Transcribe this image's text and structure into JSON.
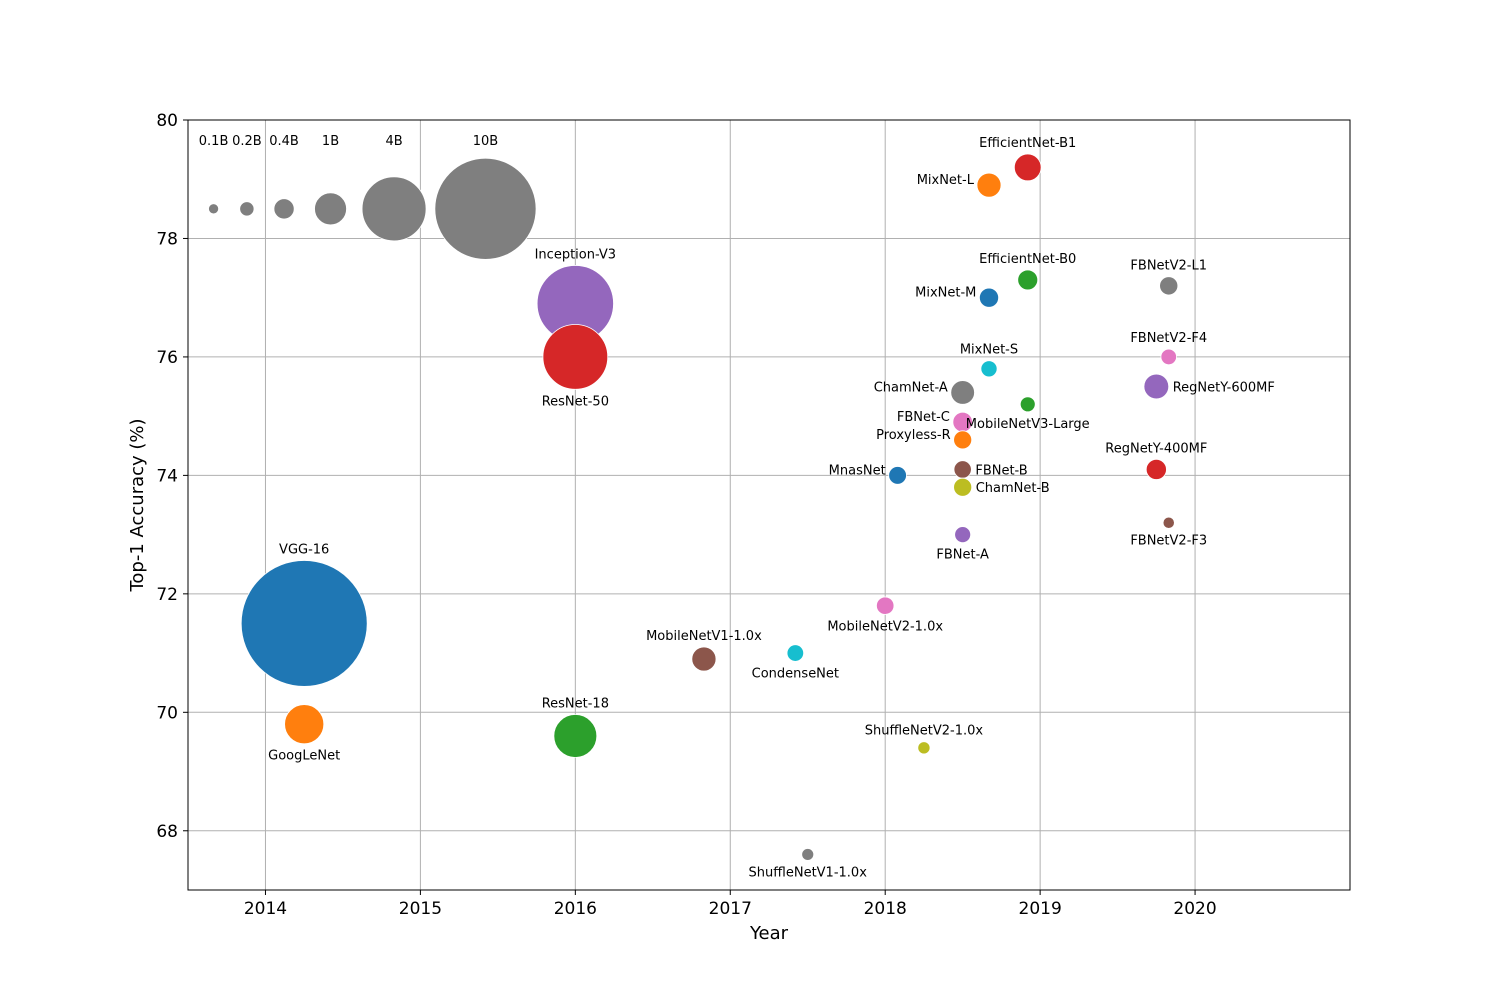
{
  "chart_data": {
    "type": "scatter",
    "title": "",
    "xlabel": "Year",
    "ylabel": "Top-1 Accuracy (%)",
    "xlim": [
      2013.5,
      2021
    ],
    "ylim": [
      67,
      80
    ],
    "xticks": [
      2014,
      2015,
      2016,
      2017,
      2018,
      2019,
      2020
    ],
    "yticks": [
      68,
      70,
      72,
      74,
      76,
      78,
      80
    ],
    "grid": true,
    "size_encoding": "FLOPs (GFLOPs), bubble area",
    "size_legend": {
      "placement": "top-left",
      "color": "#7f7f7f",
      "y": 78.5,
      "items": [
        {
          "label": "0.1B",
          "x": 2013.665,
          "gflops": 0.1
        },
        {
          "label": "0.2B",
          "x": 2013.88,
          "gflops": 0.2
        },
        {
          "label": "0.4B",
          "x": 2014.12,
          "gflops": 0.4
        },
        {
          "label": "1B",
          "x": 2014.42,
          "gflops": 1
        },
        {
          "label": "4B",
          "x": 2014.83,
          "gflops": 4
        },
        {
          "label": "10B",
          "x": 2015.42,
          "gflops": 10
        }
      ]
    },
    "points": [
      {
        "name": "VGG-16",
        "x": 2014.25,
        "y": 71.5,
        "gflops": 15.5,
        "color": "#1f77b4",
        "label_pos": "top"
      },
      {
        "name": "GoogLeNet",
        "x": 2014.25,
        "y": 69.8,
        "gflops": 1.5,
        "color": "#ff7f0e",
        "label_pos": "bottom"
      },
      {
        "name": "Inception-V3",
        "x": 2016.0,
        "y": 76.9,
        "gflops": 5.7,
        "color": "#9467bd",
        "label_pos": "top"
      },
      {
        "name": "ResNet-50",
        "x": 2016.0,
        "y": 76.0,
        "gflops": 4.1,
        "color": "#d62728",
        "label_pos": "bottom"
      },
      {
        "name": "ResNet-18",
        "x": 2016.0,
        "y": 69.6,
        "gflops": 1.8,
        "color": "#2ca02c",
        "label_pos": "top"
      },
      {
        "name": "MobileNetV1-1.0x",
        "x": 2016.83,
        "y": 70.9,
        "gflops": 0.57,
        "color": "#8c564b",
        "label_pos": "top"
      },
      {
        "name": "CondenseNet",
        "x": 2017.42,
        "y": 71.0,
        "gflops": 0.27,
        "color": "#17becf",
        "label_pos": "bottom"
      },
      {
        "name": "ShuffleNetV1-1.0x",
        "x": 2017.5,
        "y": 67.6,
        "gflops": 0.14,
        "color": "#7f7f7f",
        "label_pos": "bottom"
      },
      {
        "name": "MobileNetV2-1.0x",
        "x": 2018.0,
        "y": 71.8,
        "gflops": 0.3,
        "color": "#e377c2",
        "label_pos": "bottom"
      },
      {
        "name": "ShuffleNetV2-1.0x",
        "x": 2018.25,
        "y": 69.4,
        "gflops": 0.146,
        "color": "#bcbd22",
        "label_pos": "top"
      },
      {
        "name": "MnasNet",
        "x": 2018.08,
        "y": 74.0,
        "gflops": 0.31,
        "color": "#1f77b4",
        "label_pos": "left"
      },
      {
        "name": "ChamNet-A",
        "x": 2018.5,
        "y": 75.4,
        "gflops": 0.55,
        "color": "#7f7f7f",
        "label_pos": "left"
      },
      {
        "name": "FBNet-C",
        "x": 2018.5,
        "y": 74.9,
        "gflops": 0.375,
        "color": "#e377c2",
        "label_pos": "left"
      },
      {
        "name": "Proxyless-R",
        "x": 2018.5,
        "y": 74.6,
        "gflops": 0.32,
        "color": "#ff7f0e",
        "label_pos": "left"
      },
      {
        "name": "FBNet-B",
        "x": 2018.5,
        "y": 74.1,
        "gflops": 0.295,
        "color": "#8c564b",
        "label_pos": "right"
      },
      {
        "name": "ChamNet-B",
        "x": 2018.5,
        "y": 73.8,
        "gflops": 0.32,
        "color": "#bcbd22",
        "label_pos": "right"
      },
      {
        "name": "FBNet-A",
        "x": 2018.5,
        "y": 73.0,
        "gflops": 0.25,
        "color": "#9467bd",
        "label_pos": "bottom"
      },
      {
        "name": "MixNet-S",
        "x": 2018.67,
        "y": 75.8,
        "gflops": 0.256,
        "color": "#17becf",
        "label_pos": "top"
      },
      {
        "name": "MixNet-M",
        "x": 2018.67,
        "y": 77.0,
        "gflops": 0.36,
        "color": "#1f77b4",
        "label_pos": "left"
      },
      {
        "name": "MixNet-L",
        "x": 2018.67,
        "y": 78.9,
        "gflops": 0.565,
        "color": "#ff7f0e",
        "label_pos": "left"
      },
      {
        "name": "EfficientNet-B1",
        "x": 2018.92,
        "y": 79.2,
        "gflops": 0.7,
        "color": "#d62728",
        "label_pos": "top"
      },
      {
        "name": "EfficientNet-B0",
        "x": 2018.92,
        "y": 77.3,
        "gflops": 0.39,
        "color": "#2ca02c",
        "label_pos": "top"
      },
      {
        "name": "MobileNetV3-Large",
        "x": 2018.92,
        "y": 75.2,
        "gflops": 0.219,
        "color": "#2ca02c",
        "label_pos": "bottom"
      },
      {
        "name": "FBNetV2-L1",
        "x": 2019.83,
        "y": 77.2,
        "gflops": 0.325,
        "color": "#7f7f7f",
        "label_pos": "top"
      },
      {
        "name": "FBNetV2-F4",
        "x": 2019.83,
        "y": 76.0,
        "gflops": 0.238,
        "color": "#e377c2",
        "label_pos": "top"
      },
      {
        "name": "RegNetY-600MF",
        "x": 2019.75,
        "y": 75.5,
        "gflops": 0.6,
        "color": "#9467bd",
        "label_pos": "right"
      },
      {
        "name": "RegNetY-400MF",
        "x": 2019.75,
        "y": 74.1,
        "gflops": 0.4,
        "color": "#d62728",
        "label_pos": "top"
      },
      {
        "name": "FBNetV2-F3",
        "x": 2019.83,
        "y": 73.2,
        "gflops": 0.126,
        "color": "#8c564b",
        "label_pos": "bottom"
      }
    ]
  }
}
